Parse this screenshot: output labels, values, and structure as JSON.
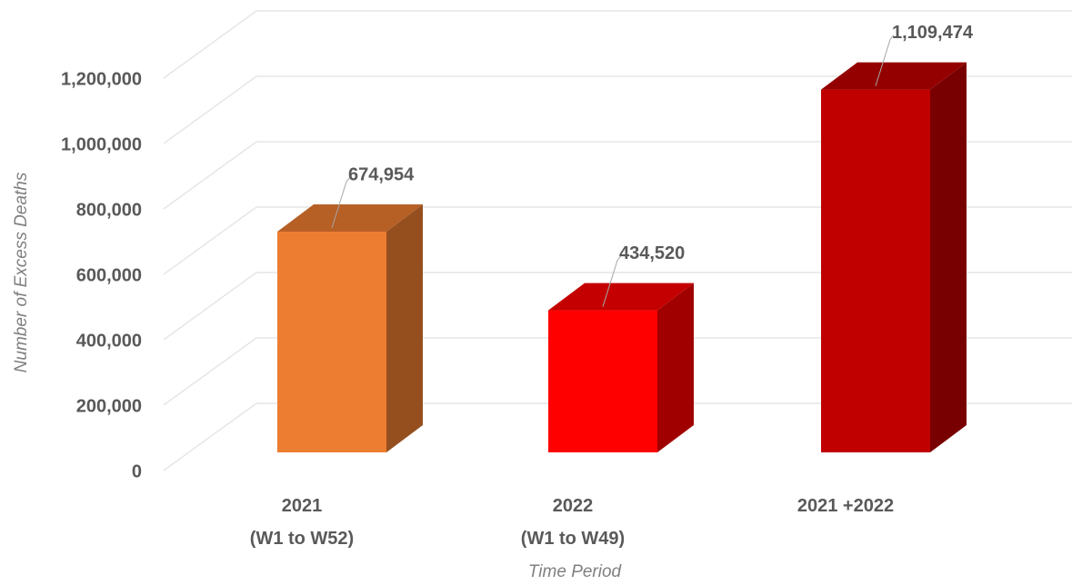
{
  "chart_data": {
    "type": "bar3d",
    "categories": [
      "2021\n(W1 to W52)",
      "2022\n(W1 to W49)",
      "2021 +2022"
    ],
    "values": [
      674954,
      434520,
      1109474
    ],
    "value_labels": [
      "674,954",
      "434,520",
      "1,109,474"
    ],
    "colors": [
      "#ed7d31",
      "#ff0000",
      "#c00000"
    ],
    "y_label": "Number of Excess Deaths",
    "x_label": "Time Period",
    "ylim": [
      0,
      1200000
    ],
    "yticks": [
      0,
      {
        "value": 200000,
        "label": "200,000"
      },
      {
        "value": 400000,
        "label": "400,000"
      },
      {
        "value": 600000,
        "label": "600,000"
      },
      {
        "value": 800000,
        "label": "800,000"
      },
      {
        "value": 1000000,
        "label": "1,000,000"
      },
      {
        "value": 1200000,
        "label": "1,200,000"
      }
    ],
    "grid": true
  }
}
